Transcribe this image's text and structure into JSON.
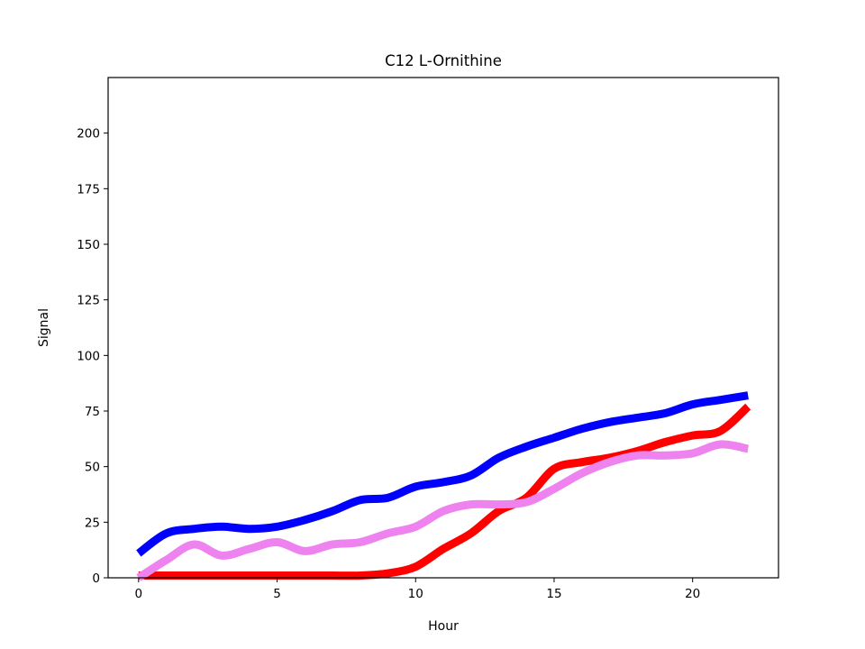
{
  "chart_data": {
    "type": "line",
    "title": "C12 L-Ornithine",
    "xlabel": "Hour",
    "ylabel": "Signal",
    "xlim": [
      -1.1,
      23.1
    ],
    "ylim": [
      0,
      225
    ],
    "xticks": [
      0,
      5,
      10,
      15,
      20
    ],
    "yticks": [
      0,
      25,
      50,
      75,
      100,
      125,
      150,
      175,
      200
    ],
    "grid": false,
    "legend": "none",
    "x": [
      0,
      1,
      2,
      3,
      4,
      5,
      6,
      7,
      8,
      9,
      10,
      11,
      12,
      13,
      14,
      15,
      16,
      17,
      18,
      19,
      20,
      21,
      22
    ],
    "series": [
      {
        "color": "#ff0000",
        "values": [
          1,
          1,
          1,
          1,
          1,
          1,
          1,
          1,
          1,
          2,
          5,
          13,
          20,
          30,
          36,
          49,
          52,
          54,
          57,
          61,
          64,
          66,
          77
        ]
      },
      {
        "color": "#0000ff",
        "values": [
          11,
          20,
          22,
          23,
          22,
          23,
          26,
          30,
          35,
          36,
          41,
          43,
          46,
          54,
          59,
          63,
          67,
          70,
          72,
          74,
          78,
          80,
          82
        ]
      },
      {
        "color": "#ee82ee",
        "values": [
          0,
          8,
          15,
          10,
          13,
          16,
          12,
          15,
          16,
          20,
          23,
          30,
          33,
          33,
          34,
          40,
          47,
          52,
          55,
          55,
          56,
          60,
          58
        ]
      }
    ]
  }
}
